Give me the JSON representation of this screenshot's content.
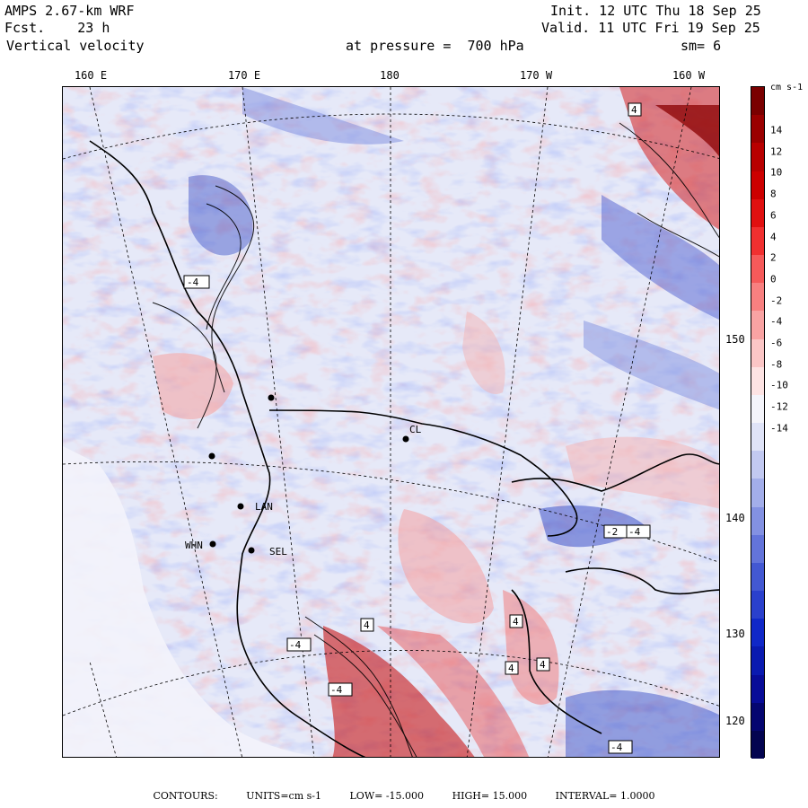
{
  "header": {
    "model": "AMPS 2.67-km WRF",
    "forecast": "Fcst.    23 h",
    "field": "Vertical velocity",
    "init": "Init. 12 UTC Thu 18 Sep 25",
    "valid": "Valid. 11 UTC Fri 19 Sep 25",
    "pressure": "at pressure =  700 hPa",
    "smoothing": "sm= 6"
  },
  "longitude_labels": [
    "160 E",
    "170 E",
    "180",
    "170 W",
    "160 W"
  ],
  "latitude_labels": [
    "150 W",
    "140 W",
    "130 W",
    "120 W"
  ],
  "colorbar": {
    "units": "cm s-1",
    "ticks": [
      "14",
      "12",
      "10",
      "8",
      "6",
      "4",
      "2",
      "0",
      "-2",
      "-4",
      "-6",
      "-8",
      "-10",
      "-12",
      "-14"
    ],
    "colors_top_to_bottom": [
      "#7a0000",
      "#9a0000",
      "#b80000",
      "#cc0000",
      "#e01010",
      "#f03030",
      "#f55a5a",
      "#f88080",
      "#f9a3a3",
      "#fbc6c6",
      "#fde3e3",
      "#f4f4fa",
      "#dfe3f7",
      "#c2c9f1",
      "#a3aeea",
      "#8391e2",
      "#6374da",
      "#4358d2",
      "#2a40cc",
      "#1028c8",
      "#0a1ab0",
      "#080c98",
      "#050670",
      "#030450"
    ]
  },
  "stations": [
    "CL",
    "LAN",
    "WHN",
    "SEL"
  ],
  "highlows": [
    "4",
    "-4",
    "-2",
    "-4",
    "4",
    "-4",
    "4",
    "4",
    "-4",
    "4",
    "-4"
  ],
  "footer": {
    "label": "CONTOURS:",
    "units": "UNITS=cm s-1",
    "low": "LOW= -15.000",
    "high": "HIGH= 15.000",
    "interval": "INTERVAL=  1.0000"
  }
}
